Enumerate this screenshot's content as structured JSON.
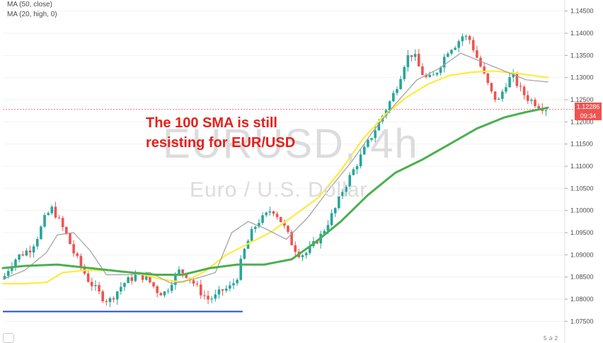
{
  "legend": {
    "ma1": "MA (50, close)",
    "ma2": "MA (20, high, 0)"
  },
  "annotation": {
    "line1": "The 100 SMA is still",
    "line2": "resisting for EUR/USD"
  },
  "watermark": {
    "symbol": "EURUSD, 4h",
    "description": "Euro / U.S. Dollar"
  },
  "price_badge": "1.12286",
  "time_badge": "09:34",
  "corner_icons": "5 ✰ 2",
  "colors": {
    "up": "#26a69a",
    "down": "#ef5350",
    "ma50": "#ffeb3b",
    "ma20": "#9e9e9e",
    "ma100": "#4caf50",
    "support": "#1e4fc7",
    "annotation": "#e5201b"
  },
  "chart_data": {
    "type": "line",
    "title": "",
    "xlabel": "",
    "ylabel": "",
    "ylim": [
      1.0725,
      1.1475
    ],
    "y_ticks": [
      "1.14500",
      "1.14000",
      "1.13500",
      "1.13000",
      "1.12500",
      "1.12000",
      "1.11500",
      "1.11000",
      "1.10500",
      "1.10000",
      "1.09500",
      "1.09000",
      "1.08500",
      "1.08000",
      "1.07500"
    ],
    "last_price": 1.12286,
    "price_series": [
      1.0845,
      1.0875,
      1.0895,
      1.0905,
      1.0915,
      1.0945,
      1.0985,
      1.1005,
      1.0975,
      1.0945,
      1.0905,
      1.0875,
      1.0845,
      1.0825,
      1.0805,
      1.0795,
      1.0815,
      1.0835,
      1.0845,
      1.0855,
      1.085,
      1.0835,
      1.0815,
      1.0815,
      1.0845,
      1.0865,
      1.0855,
      1.0835,
      1.0815,
      1.08,
      1.0805,
      1.082,
      1.0825,
      1.0845,
      1.0905,
      1.0945,
      1.0975,
      1.0985,
      1.1005,
      1.0985,
      1.0955,
      1.092,
      1.09,
      1.0905,
      1.0925,
      1.0945,
      1.0975,
      1.1005,
      1.1045,
      1.1075,
      1.1105,
      1.1135,
      1.1165,
      1.1195,
      1.1225,
      1.1255,
      1.1295,
      1.1345,
      1.1355,
      1.1315,
      1.1295,
      1.1305,
      1.1335,
      1.1365,
      1.1375,
      1.1395,
      1.1385,
      1.1345,
      1.1305,
      1.1265,
      1.1245,
      1.1285,
      1.1305,
      1.1275,
      1.1255,
      1.1245,
      1.1235,
      1.1229
    ],
    "series": [
      {
        "name": "MA (50, close)",
        "color": "#ffeb3b",
        "x": [
          0,
          0.04,
          0.08,
          0.11,
          0.15,
          0.2,
          0.25,
          0.29,
          0.33,
          0.37,
          0.41,
          0.45,
          0.49,
          0.53,
          0.58,
          0.62,
          0.66,
          0.7,
          0.74,
          0.78,
          0.82,
          0.86,
          0.9,
          0.94,
          0.97,
          1.0
        ],
        "values": [
          1.0835,
          1.0835,
          1.0838,
          1.086,
          1.0865,
          1.0865,
          1.0858,
          1.0845,
          1.0838,
          1.0862,
          1.09,
          1.0925,
          1.095,
          1.0985,
          1.103,
          1.109,
          1.116,
          1.1215,
          1.1255,
          1.1285,
          1.1305,
          1.1312,
          1.1315,
          1.131,
          1.1305,
          1.13
        ]
      },
      {
        "name": "MA (20, high, 0)",
        "color": "#9e9e9e",
        "x": [
          0,
          0.04,
          0.08,
          0.1,
          0.13,
          0.16,
          0.19,
          0.23,
          0.27,
          0.31,
          0.35,
          0.39,
          0.42,
          0.45,
          0.48,
          0.52,
          0.56,
          0.6,
          0.64,
          0.68,
          0.72,
          0.76,
          0.8,
          0.84,
          0.88,
          0.92,
          0.96,
          1.0
        ],
        "values": [
          1.0845,
          1.0865,
          1.0905,
          1.0945,
          1.095,
          1.091,
          1.0855,
          1.0855,
          1.086,
          1.0835,
          1.0845,
          1.086,
          1.095,
          1.0975,
          1.096,
          1.0935,
          1.0985,
          1.105,
          1.111,
          1.118,
          1.124,
          1.1295,
          1.132,
          1.1355,
          1.1335,
          1.1315,
          1.1295,
          1.129
        ]
      },
      {
        "name": "",
        "color": "#4caf50",
        "x": [
          0,
          0.04,
          0.1,
          0.16,
          0.22,
          0.28,
          0.33,
          0.38,
          0.43,
          0.48,
          0.53,
          0.57,
          0.62,
          0.67,
          0.72,
          0.77,
          0.82,
          0.87,
          0.92,
          0.96,
          1.0
        ],
        "values": [
          1.087,
          1.0875,
          1.0878,
          1.087,
          1.0862,
          1.0855,
          1.0855,
          1.087,
          1.0878,
          1.0878,
          1.089,
          1.0925,
          1.0975,
          1.1035,
          1.1085,
          1.1115,
          1.115,
          1.1185,
          1.121,
          1.1222,
          1.1232
        ]
      }
    ],
    "support_line": {
      "y": 1.0772,
      "x_start": 0.0,
      "x_end": 0.44
    }
  }
}
